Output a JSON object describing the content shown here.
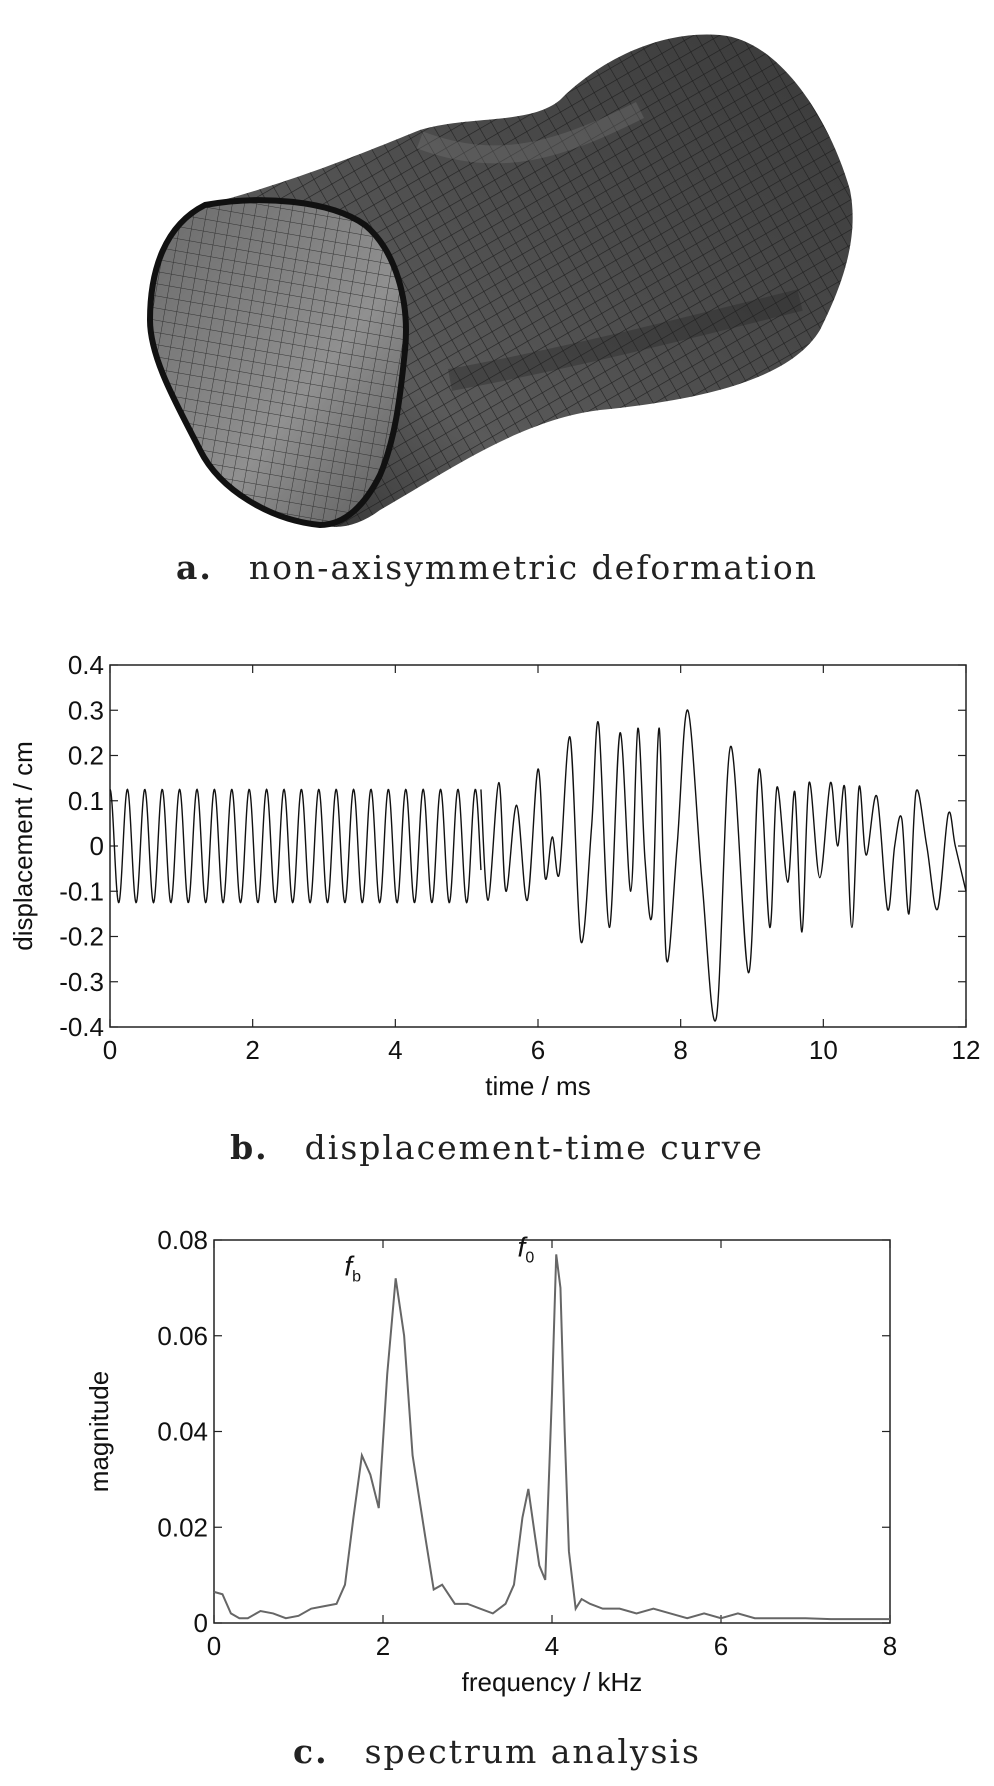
{
  "panel_a": {
    "caption_letter": "a.",
    "caption_text": "non-axisymmetric deformation"
  },
  "panel_b": {
    "caption_letter": "b.",
    "caption_text": "displacement-time curve"
  },
  "panel_c": {
    "caption_letter": "c.",
    "caption_text": "spectrum analysis",
    "annotations": [
      {
        "main": "f",
        "sub": "b",
        "x": 2.0,
        "y": 0.073
      },
      {
        "main": "f",
        "sub": "0",
        "x": 4.05,
        "y": 0.077
      }
    ]
  },
  "chart_data": [
    {
      "type": "line",
      "xlabel": "time / ms",
      "ylabel": "displacement / cm",
      "xlim": [
        0,
        12
      ],
      "ylim": [
        -0.4,
        0.4
      ],
      "xticks": [
        0,
        2,
        4,
        6,
        8,
        10,
        12
      ],
      "yticks": [
        0.4,
        0.3,
        0.2,
        0.1,
        0,
        -0.1,
        -0.2,
        -0.3,
        -0.4
      ],
      "ytick_labels": [
        "0.4",
        "0.3",
        "0.2",
        "0.1",
        "0",
        "-0.1",
        "-0.2",
        "-0.3",
        "-0.4"
      ],
      "grid": false,
      "steady_oscillation": {
        "x_start": 0,
        "x_end": 5.2,
        "frequency_khz": 4.1,
        "amplitude": 0.125
      },
      "x": [
        5.2,
        5.3,
        5.45,
        5.55,
        5.7,
        5.85,
        6.0,
        6.1,
        6.2,
        6.3,
        6.45,
        6.6,
        6.75,
        6.85,
        7.0,
        7.15,
        7.3,
        7.4,
        7.5,
        7.6,
        7.7,
        7.8,
        7.95,
        8.1,
        8.3,
        8.5,
        8.7,
        8.95,
        9.1,
        9.25,
        9.35,
        9.5,
        9.6,
        9.7,
        9.8,
        9.95,
        10.1,
        10.2,
        10.3,
        10.4,
        10.5,
        10.6,
        10.75,
        10.9,
        11.0,
        11.1,
        11.2,
        11.3,
        11.45,
        11.6,
        11.75,
        11.85,
        12.0
      ],
      "y": [
        0.125,
        -0.12,
        0.14,
        -0.1,
        0.09,
        -0.12,
        0.17,
        -0.07,
        0.02,
        -0.06,
        0.24,
        -0.21,
        0.04,
        0.27,
        -0.18,
        0.25,
        -0.1,
        0.26,
        -0.03,
        -0.15,
        0.26,
        -0.25,
        0.0,
        0.3,
        -0.08,
        -0.38,
        0.22,
        -0.28,
        0.17,
        -0.18,
        0.13,
        -0.08,
        0.12,
        -0.19,
        0.14,
        -0.07,
        0.14,
        0.0,
        0.13,
        -0.18,
        0.13,
        -0.02,
        0.11,
        -0.14,
        0.0,
        0.06,
        -0.15,
        0.12,
        0.0,
        -0.14,
        0.07,
        0.0,
        -0.1
      ]
    },
    {
      "type": "line",
      "xlabel": "frequency / kHz",
      "ylabel": "magnitude",
      "xlim": [
        0,
        8
      ],
      "ylim": [
        0,
        0.08
      ],
      "xticks": [
        0,
        2,
        4,
        6,
        8
      ],
      "yticks": [
        0.08,
        0.06,
        0.04,
        0.02,
        0
      ],
      "ytick_labels": [
        "0.08",
        "0.06",
        "0.04",
        "0.02",
        "0"
      ],
      "grid": false,
      "x": [
        0,
        0.1,
        0.2,
        0.3,
        0.4,
        0.55,
        0.7,
        0.85,
        1.0,
        1.15,
        1.3,
        1.45,
        1.55,
        1.65,
        1.75,
        1.8,
        1.85,
        1.95,
        2.05,
        2.15,
        2.25,
        2.35,
        2.5,
        2.6,
        2.7,
        2.85,
        3.0,
        3.15,
        3.3,
        3.45,
        3.55,
        3.65,
        3.72,
        3.8,
        3.85,
        3.92,
        4.0,
        4.05,
        4.1,
        4.15,
        4.2,
        4.28,
        4.35,
        4.45,
        4.6,
        4.8,
        5.0,
        5.2,
        5.4,
        5.6,
        5.8,
        6.0,
        6.2,
        6.4,
        6.6,
        6.8,
        7.0,
        7.3,
        7.6,
        8.0
      ],
      "y": [
        0.0065,
        0.006,
        0.002,
        0.001,
        0.001,
        0.0025,
        0.002,
        0.001,
        0.0015,
        0.003,
        0.0035,
        0.004,
        0.008,
        0.022,
        0.035,
        0.033,
        0.031,
        0.024,
        0.052,
        0.072,
        0.06,
        0.035,
        0.018,
        0.007,
        0.008,
        0.004,
        0.004,
        0.003,
        0.002,
        0.004,
        0.008,
        0.022,
        0.028,
        0.018,
        0.012,
        0.009,
        0.048,
        0.077,
        0.07,
        0.04,
        0.015,
        0.003,
        0.005,
        0.004,
        0.003,
        0.003,
        0.002,
        0.003,
        0.002,
        0.001,
        0.002,
        0.001,
        0.002,
        0.001,
        0.001,
        0.001,
        0.001,
        0.0008,
        0.0008,
        0.0008
      ]
    }
  ]
}
